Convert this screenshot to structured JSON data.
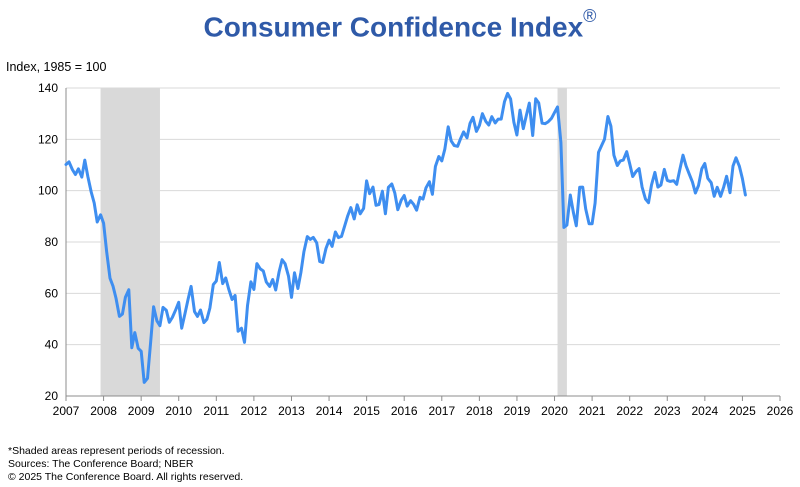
{
  "chart_data": {
    "type": "line",
    "title": "Consumer Confidence Index",
    "title_mark": "®",
    "ylabel": "Index, 1985 = 100",
    "xlim": [
      2007,
      2026
    ],
    "ylim": [
      20,
      140
    ],
    "yticks": [
      20,
      40,
      60,
      80,
      100,
      120,
      140
    ],
    "xticks": [
      2007,
      2008,
      2009,
      2010,
      2011,
      2012,
      2013,
      2014,
      2015,
      2016,
      2017,
      2018,
      2019,
      2020,
      2021,
      2022,
      2023,
      2024,
      2025,
      2026
    ],
    "grid": "horizontal",
    "line_color": "#3E8EF0",
    "shade_color": "#D9D9D9",
    "recessions": [
      [
        2007.92,
        2009.5
      ],
      [
        2020.08,
        2020.33
      ]
    ],
    "series": [
      {
        "x": [
          2007.0,
          2007.08,
          2007.17,
          2007.25,
          2007.33,
          2007.42,
          2007.5,
          2007.58,
          2007.67,
          2007.75,
          2007.83,
          2007.92,
          2008.0,
          2008.08,
          2008.17,
          2008.25,
          2008.33,
          2008.42,
          2008.5,
          2008.58,
          2008.67,
          2008.75,
          2008.83,
          2008.92,
          2009.0,
          2009.08,
          2009.17,
          2009.25,
          2009.33,
          2009.42,
          2009.5,
          2009.58,
          2009.67,
          2009.75,
          2009.83,
          2009.92,
          2010.0,
          2010.08,
          2010.17,
          2010.25,
          2010.33,
          2010.42,
          2010.5,
          2010.58,
          2010.67,
          2010.75,
          2010.83,
          2010.92,
          2011.0,
          2011.08,
          2011.17,
          2011.25,
          2011.33,
          2011.42,
          2011.5,
          2011.58,
          2011.67,
          2011.75,
          2011.83,
          2011.92,
          2012.0,
          2012.08,
          2012.17,
          2012.25,
          2012.33,
          2012.42,
          2012.5,
          2012.58,
          2012.67,
          2012.75,
          2012.83,
          2012.92,
          2013.0,
          2013.08,
          2013.17,
          2013.25,
          2013.33,
          2013.42,
          2013.5,
          2013.58,
          2013.67,
          2013.75,
          2013.83,
          2013.92,
          2014.0,
          2014.08,
          2014.17,
          2014.25,
          2014.33,
          2014.42,
          2014.5,
          2014.58,
          2014.67,
          2014.75,
          2014.83,
          2014.92,
          2015.0,
          2015.08,
          2015.17,
          2015.25,
          2015.33,
          2015.42,
          2015.5,
          2015.58,
          2015.67,
          2015.75,
          2015.83,
          2015.92,
          2016.0,
          2016.08,
          2016.17,
          2016.25,
          2016.33,
          2016.42,
          2016.5,
          2016.58,
          2016.67,
          2016.75,
          2016.83,
          2016.92,
          2017.0,
          2017.08,
          2017.17,
          2017.25,
          2017.33,
          2017.42,
          2017.5,
          2017.58,
          2017.67,
          2017.75,
          2017.83,
          2017.92,
          2018.0,
          2018.08,
          2018.17,
          2018.25,
          2018.33,
          2018.42,
          2018.5,
          2018.58,
          2018.67,
          2018.75,
          2018.83,
          2018.92,
          2019.0,
          2019.08,
          2019.17,
          2019.25,
          2019.33,
          2019.42,
          2019.5,
          2019.58,
          2019.67,
          2019.75,
          2019.83,
          2019.92,
          2020.0,
          2020.08,
          2020.17,
          2020.25,
          2020.33,
          2020.42,
          2020.5,
          2020.58,
          2020.67,
          2020.75,
          2020.83,
          2020.92,
          2021.0,
          2021.08,
          2021.17,
          2021.25,
          2021.33,
          2021.42,
          2021.5,
          2021.58,
          2021.67,
          2021.75,
          2021.83,
          2021.92,
          2022.0,
          2022.08,
          2022.17,
          2022.25,
          2022.33,
          2022.42,
          2022.5,
          2022.58,
          2022.67,
          2022.75,
          2022.83,
          2022.92,
          2023.0,
          2023.08,
          2023.17,
          2023.25,
          2023.33,
          2023.42,
          2023.5,
          2023.58,
          2023.67,
          2023.75,
          2023.83,
          2023.92,
          2024.0,
          2024.08,
          2024.17,
          2024.25,
          2024.33,
          2024.42,
          2024.5,
          2024.58,
          2024.67,
          2024.75,
          2024.83,
          2024.92,
          2025.0,
          2025.08
        ],
        "values": [
          110.2,
          111.2,
          108.2,
          106.3,
          108.5,
          105.3,
          111.9,
          105.6,
          99.5,
          95.2,
          87.8,
          90.6,
          87.3,
          76.4,
          65.9,
          62.8,
          58.1,
          51.0,
          51.9,
          58.5,
          61.4,
          38.8,
          44.7,
          38.6,
          37.4,
          25.3,
          26.9,
          40.8,
          54.8,
          49.3,
          47.4,
          54.5,
          53.4,
          48.7,
          50.6,
          53.6,
          56.5,
          46.4,
          52.3,
          57.7,
          62.7,
          52.9,
          51.0,
          53.5,
          48.6,
          49.9,
          54.3,
          63.4,
          64.8,
          72.0,
          63.8,
          66.0,
          61.7,
          57.6,
          59.2,
          45.2,
          46.4,
          40.9,
          55.2,
          64.5,
          61.5,
          71.6,
          69.5,
          68.7,
          64.4,
          62.7,
          65.4,
          61.3,
          68.4,
          73.1,
          71.5,
          66.7,
          58.4,
          68.0,
          61.9,
          68.1,
          76.2,
          82.1,
          81.0,
          81.8,
          79.7,
          72.4,
          72.0,
          77.5,
          80.7,
          78.3,
          83.9,
          81.7,
          82.2,
          86.4,
          90.3,
          93.4,
          89.0,
          94.5,
          91.0,
          93.1,
          103.8,
          98.8,
          101.4,
          94.3,
          94.6,
          99.8,
          91.0,
          101.3,
          102.6,
          99.1,
          92.6,
          96.3,
          98.1,
          94.0,
          96.1,
          94.7,
          92.4,
          97.4,
          96.7,
          101.1,
          103.5,
          98.6,
          109.4,
          113.3,
          111.6,
          116.1,
          124.9,
          119.4,
          117.6,
          117.3,
          120.3,
          122.9,
          120.6,
          126.2,
          128.6,
          123.1,
          125.4,
          130.0,
          127.0,
          125.6,
          128.8,
          126.4,
          127.9,
          127.9,
          134.7,
          137.9,
          135.7,
          126.6,
          121.7,
          131.4,
          124.2,
          129.2,
          134.1,
          121.5,
          135.8,
          134.2,
          126.3,
          126.1,
          126.8,
          128.2,
          130.4,
          132.6,
          118.8,
          85.7,
          86.6,
          98.3,
          91.7,
          86.3,
          101.3,
          101.4,
          92.9,
          87.1,
          87.1,
          95.2,
          114.9,
          117.5,
          120.0,
          128.9,
          125.1,
          113.8,
          109.8,
          111.6,
          111.9,
          115.2,
          110.5,
          105.5,
          107.5,
          108.6,
          101.4,
          96.7,
          95.3,
          102.2,
          107.1,
          101.4,
          102.2,
          108.3,
          104.0,
          103.6,
          103.9,
          102.5,
          108.0,
          113.8,
          109.6,
          106.6,
          103.4,
          99.1,
          102.0,
          108.5,
          110.6,
          104.8,
          103.1,
          97.8,
          101.3,
          97.8,
          101.3,
          105.6,
          99.2,
          109.6,
          112.8,
          109.5,
          104.7,
          98.3
        ]
      }
    ]
  },
  "footnotes": {
    "recession_note": "*Shaded areas represent periods of recession.",
    "sources": "Sources: The Conference Board;  NBER",
    "copyright": "© 2025 The Conference Board. All rights reserved."
  }
}
